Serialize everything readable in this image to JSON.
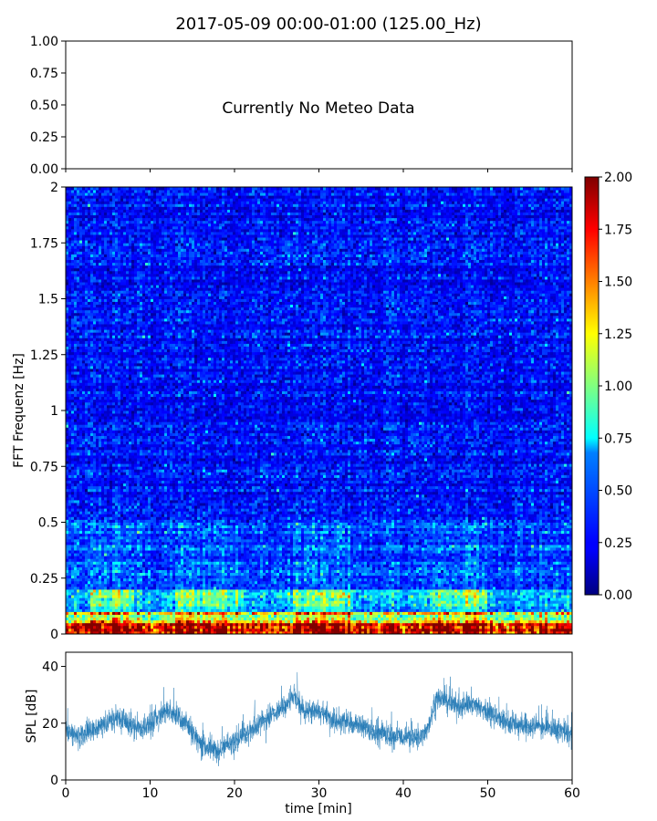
{
  "chart_data": [
    {
      "panel": "meteo",
      "type": "line",
      "title": "2017-05-09 00:00-01:00 (125.00_Hz)",
      "ylim": [
        0,
        1
      ],
      "yticks": [
        "1.00",
        "0.75",
        "0.50",
        "0.25",
        "0.00"
      ],
      "yticks_values": [
        1,
        0.75,
        0.5,
        0.25,
        0
      ],
      "xlim": [
        0,
        60
      ],
      "annotation": "Currently No Meteo Data",
      "series": []
    },
    {
      "panel": "spectrogram",
      "type": "heatmap",
      "ylabel": "FFT Frequenz [Hz]",
      "xlim": [
        0,
        60
      ],
      "ylim": [
        0,
        2
      ],
      "yticks": [
        "2",
        "1.75",
        "1.5",
        "1.25",
        "1",
        "0.75",
        "0.5",
        "0.25",
        "0"
      ],
      "yticks_values": [
        2,
        1.75,
        1.5,
        1.25,
        1,
        0.75,
        0.5,
        0.25,
        0
      ],
      "colormap": "jet",
      "colorbar": {
        "min": 0,
        "max": 2,
        "ticks": [
          "2.00",
          "1.75",
          "1.50",
          "1.25",
          "1.00",
          "0.75",
          "0.50",
          "0.25",
          "0.00"
        ],
        "ticks_values": [
          2,
          1.75,
          1.5,
          1.25,
          1,
          0.75,
          0.5,
          0.25,
          0
        ]
      },
      "high_energy_bands_min": [
        {
          "from": 3,
          "to": 8
        },
        {
          "from": 13,
          "to": 21
        },
        {
          "from": 27,
          "to": 34
        },
        {
          "from": 43,
          "to": 50
        }
      ]
    },
    {
      "panel": "spl",
      "type": "line",
      "ylabel": "SPL [dB]",
      "xlabel": "time [min]",
      "xlim": [
        0,
        60
      ],
      "ylim": [
        0,
        45
      ],
      "xticks": [
        "0",
        "10",
        "20",
        "30",
        "40",
        "50",
        "60"
      ],
      "xticks_values": [
        0,
        10,
        20,
        30,
        40,
        50,
        60
      ],
      "yticks": [
        "40",
        "20",
        "0"
      ],
      "yticks_values": [
        40,
        20,
        0
      ],
      "color": "#1f77b4",
      "series": [
        {
          "x": [
            0,
            2,
            4,
            6,
            8,
            10,
            12,
            14,
            16,
            18,
            20,
            22,
            24,
            26,
            27,
            28,
            30,
            32,
            34,
            36,
            38,
            40,
            42,
            43,
            44,
            45,
            46,
            48,
            50,
            52,
            54,
            56,
            58,
            60
          ],
          "values": [
            17,
            16,
            19,
            22,
            19,
            19,
            25,
            21,
            13,
            10,
            14,
            18,
            22,
            26,
            30,
            25,
            24,
            21,
            20,
            18,
            16,
            15,
            15,
            19,
            29,
            28,
            26,
            27,
            24,
            21,
            19,
            19,
            18,
            16
          ]
        }
      ]
    }
  ]
}
